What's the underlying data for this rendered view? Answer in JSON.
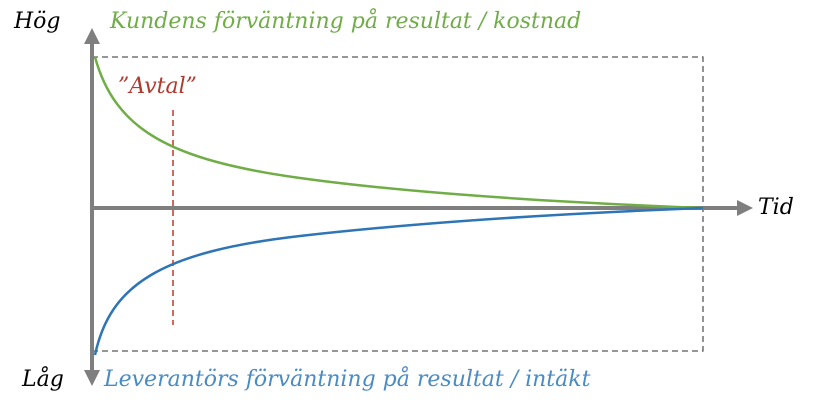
{
  "axis": {
    "high": "Hög",
    "low": "Låg",
    "time": "Tid"
  },
  "labels": {
    "customer": "Kundens förväntning på resultat / kostnad",
    "contract": "”Avtal”",
    "supplier": "Leverantörs förväntning på resultat / intäkt"
  }
}
